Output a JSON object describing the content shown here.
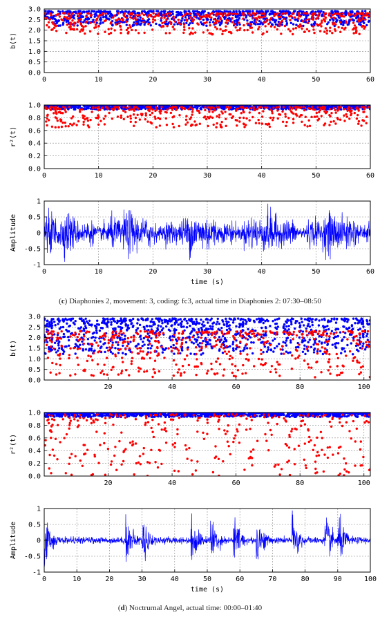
{
  "captions": {
    "c": {
      "letter": "c",
      "text": "Diaphonies 2, movement: 3, coding: fc3, actual time in Diaphonies 2: 07:30–08:50"
    },
    "d": {
      "letter": "d",
      "text": "Noctrurnal Angel, actual time: 00:00–01:40"
    }
  },
  "colors": {
    "series_a": "#0000ff",
    "series_b": "#ff0000",
    "grid": "#888888"
  },
  "chart_data": [
    {
      "id": "c-b",
      "type": "scatter",
      "ylabel": "b(t)",
      "xlim": [
        0,
        60
      ],
      "ylim": [
        0,
        3
      ],
      "xticks": [
        "0",
        "10",
        "20",
        "30",
        "40",
        "50",
        "60"
      ],
      "yticks": [
        "0.0",
        "0.5",
        "1.0",
        "1.5",
        "2.0",
        "2.5",
        "3.0"
      ],
      "grid": true,
      "series": [
        {
          "color": "blue",
          "y_range": [
            2.2,
            2.9
          ],
          "n": 900
        },
        {
          "color": "red",
          "y_range": [
            1.8,
            2.8
          ],
          "n": 500
        }
      ]
    },
    {
      "id": "c-r2",
      "type": "scatter",
      "ylabel": "r²(t)",
      "xlim": [
        0,
        60
      ],
      "ylim": [
        0,
        1
      ],
      "xticks": [
        "0",
        "10",
        "20",
        "30",
        "40",
        "50",
        "60"
      ],
      "yticks": [
        "0.0",
        "0.2",
        "0.4",
        "0.6",
        "0.8",
        "1.0"
      ],
      "grid": true,
      "series": [
        {
          "color": "blue",
          "y_range": [
            0.93,
            1.0
          ],
          "n": 900
        },
        {
          "color": "red",
          "y_range": [
            0.65,
            0.97
          ],
          "n": 450
        }
      ]
    },
    {
      "id": "c-amp",
      "type": "line",
      "ylabel": "Amplitude",
      "xlabel": "time (s)",
      "xlim": [
        0,
        60
      ],
      "ylim": [
        -1,
        1
      ],
      "xticks": [
        "0",
        "10",
        "20",
        "30",
        "40",
        "50",
        "60"
      ],
      "yticks": [
        "-1",
        "-0.5",
        "0",
        "0.5",
        "1"
      ],
      "grid": true,
      "series": [
        {
          "color": "blue",
          "peak_amplitude": 0.6
        }
      ]
    },
    {
      "id": "d-b",
      "type": "scatter",
      "ylabel": "b(t)",
      "xlim": [
        0,
        102
      ],
      "ylim": [
        0,
        3
      ],
      "xticks": [
        "20",
        "40",
        "60",
        "80",
        "100"
      ],
      "yticks": [
        "0.0",
        "0.5",
        "1.0",
        "1.5",
        "2.0",
        "2.5",
        "3.0"
      ],
      "grid": true,
      "series": [
        {
          "color": "blue",
          "y_range": [
            1.2,
            2.9
          ],
          "n": 1000
        },
        {
          "color": "red",
          "y_range": [
            0.1,
            2.3
          ],
          "n": 500
        }
      ]
    },
    {
      "id": "d-r2",
      "type": "scatter",
      "ylabel": "r²(t)",
      "xlim": [
        0,
        102
      ],
      "ylim": [
        0,
        1
      ],
      "xticks": [
        "20",
        "40",
        "60",
        "80",
        "100"
      ],
      "yticks": [
        "0.0",
        "0.2",
        "0.4",
        "0.6",
        "0.8",
        "1.0"
      ],
      "grid": true,
      "series": [
        {
          "color": "blue",
          "y_range": [
            0.93,
            1.0
          ],
          "n": 1000
        },
        {
          "color": "red",
          "y_range": [
            0.0,
            0.97
          ],
          "n": 350
        }
      ]
    },
    {
      "id": "d-amp",
      "type": "line",
      "ylabel": "Amplitude",
      "xlabel": "time (s)",
      "xlim": [
        0,
        100
      ],
      "ylim": [
        -1,
        1
      ],
      "xticks": [
        "0",
        "10",
        "20",
        "30",
        "40",
        "50",
        "60",
        "70",
        "80",
        "90",
        "100"
      ],
      "yticks": [
        "-1",
        "-0.5",
        "0",
        "0.5",
        "1"
      ],
      "grid": true,
      "series": [
        {
          "color": "blue",
          "note_onsets_s": [
            0,
            25,
            30,
            45,
            51,
            58,
            65,
            76,
            86,
            90
          ],
          "peak_amplitude": 0.8
        }
      ]
    }
  ]
}
